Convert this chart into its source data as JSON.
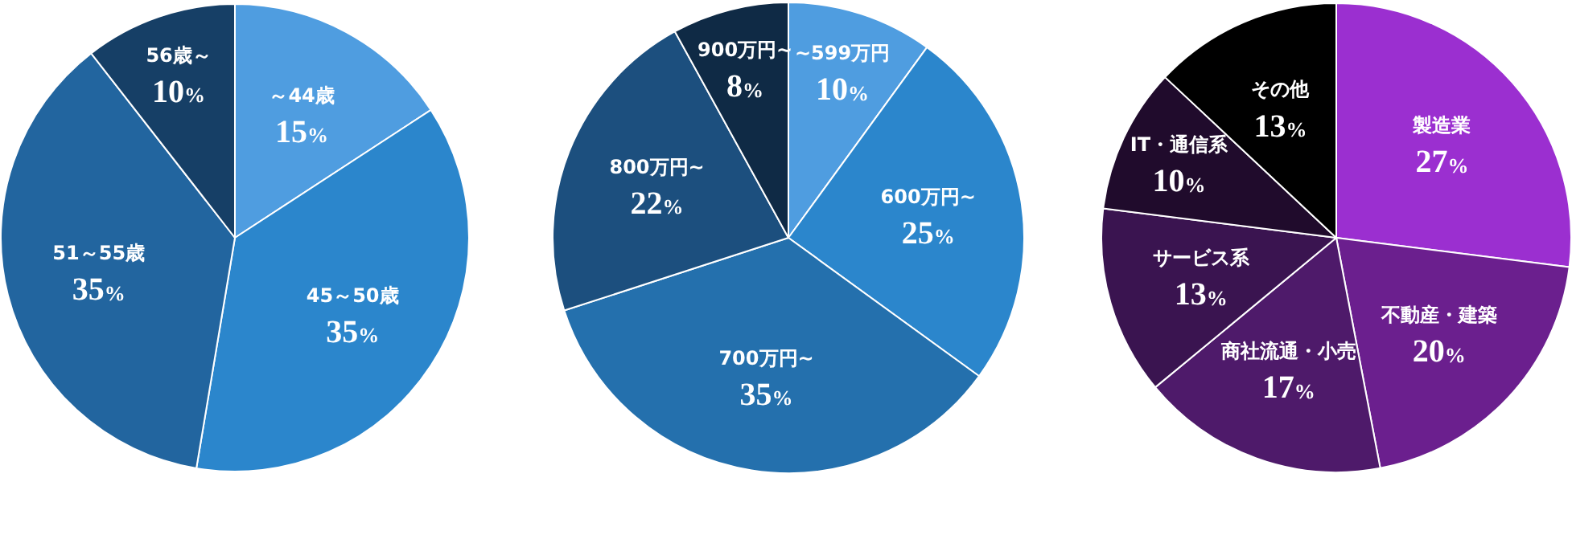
{
  "chart_data": [
    {
      "type": "pie",
      "categories": [
        "～44歳",
        "45～50歳",
        "51～55歳",
        "56歳～"
      ],
      "values": [
        15,
        35,
        35,
        10
      ],
      "value_labels": [
        "15%",
        "35%",
        "35%",
        "10%"
      ],
      "colors": [
        "#4f9de0",
        "#2b86cc",
        "#22659f",
        "#163f66"
      ],
      "legend": false
    },
    {
      "type": "pie",
      "categories": [
        "~599万円",
        "600万円~",
        "700万円~",
        "800万円~",
        "900万円~"
      ],
      "values": [
        10,
        25,
        35,
        22,
        8
      ],
      "value_labels": [
        "10%",
        "25%",
        "35%",
        "22%",
        "8%"
      ],
      "colors": [
        "#4f9de0",
        "#2b86cc",
        "#2470ad",
        "#1c4f7e",
        "#0f2a45"
      ],
      "legend": false
    },
    {
      "type": "pie",
      "categories": [
        "製造業",
        "不動産・建築",
        "商社流通・小売",
        "サービス系",
        "IT・通信系",
        "その他"
      ],
      "values": [
        27,
        20,
        17,
        13,
        10,
        13
      ],
      "value_labels": [
        "27%",
        "20%",
        "17%",
        "13%",
        "10%",
        "13%"
      ],
      "colors": [
        "#9b2fd0",
        "#6b1f8e",
        "#4e1a6a",
        "#3a1450",
        "#200b2c",
        "#000000"
      ],
      "legend": false
    }
  ]
}
